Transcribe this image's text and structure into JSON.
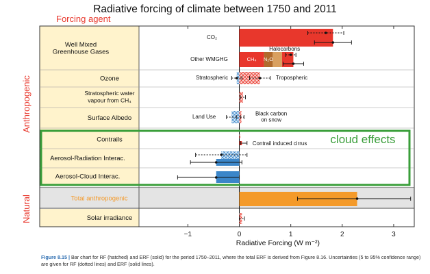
{
  "chart_data": {
    "type": "bar",
    "orientation": "horizontal",
    "title": "Radiative forcing of climate between 1750 and 2011",
    "forcing_agent_header": "Forcing agent",
    "xlabel": "Radiative Forcing (W m⁻²)",
    "xlim": [
      -1.95,
      3.4
    ],
    "xticks": [
      -1,
      0,
      1,
      2,
      3
    ],
    "group_labels": [
      "Anthropogenic",
      "Natural"
    ],
    "highlight_label": "cloud effects",
    "colors": {
      "red": "#e8372c",
      "blue": "#3b86c9",
      "orange": "#f49a2a",
      "brown": "#b06a2c",
      "tan": "#d9a060",
      "frame": "#3a9e3a",
      "header": "#e8372c",
      "band": "#fff3cc"
    },
    "rows": [
      {
        "label": "Well Mixed\nGreenhouse Gases",
        "bars": [
          {
            "sublabel": "CO₂",
            "erf": 1.82,
            "erf_err": [
              1.46,
              2.18
            ],
            "rf": 1.68,
            "rf_err": [
              1.33,
              2.03
            ],
            "color": "red"
          },
          {
            "sublabel": "Other WMGHG",
            "segments": [
              {
                "label": "CH₄",
                "from": 0,
                "to": 0.48,
                "color": "red"
              },
              {
                "label": "N₂O",
                "from": 0.48,
                "to": 0.65,
                "color": "brown"
              },
              {
                "label": "",
                "from": 0.65,
                "to": 0.83,
                "color": "tan"
              },
              {
                "label": "",
                "from": 0.83,
                "to": 1.05,
                "color": "red"
              }
            ],
            "extra_label": "Halocarbons",
            "erf": 1.05,
            "erf_err": [
              0.85,
              1.25
            ],
            "rf": 1.0,
            "rf_err": [
              0.9,
              1.1
            ]
          }
        ]
      },
      {
        "label": "Ozone",
        "bars": [
          {
            "sublabel": "Stratospheric",
            "side": "left",
            "erf": -0.05,
            "erf_err": [
              -0.15,
              0.05
            ],
            "rf": -0.05,
            "rf_err": [
              -0.15,
              0.05
            ],
            "hatch": "blue"
          },
          {
            "sublabel": "Tropospheric",
            "side": "right",
            "rf": 0.4,
            "rf_err": [
              0.2,
              0.6
            ],
            "erf": 0.4,
            "erf_err": [
              0.2,
              0.6
            ],
            "hatch": "red"
          }
        ]
      },
      {
        "label": "Stratospheric water\nvapour from CH₄",
        "bars": [
          {
            "rf": 0.07,
            "rf_err": [
              0.02,
              0.12
            ],
            "hatch": "red"
          }
        ]
      },
      {
        "label": "Surface Albedo",
        "bars": [
          {
            "sublabel": "Land Use",
            "side": "left",
            "rf": -0.15,
            "rf_err": [
              -0.25,
              -0.05
            ],
            "hatch": "blue"
          },
          {
            "sublabel": "Black carbon\non snow",
            "side": "right",
            "rf": 0.04,
            "rf_err": [
              0.02,
              0.09
            ],
            "hatch": "red"
          }
        ]
      },
      {
        "label": "Contrails",
        "bars": [
          {
            "sublabel": "Contrail induced cirrus",
            "side": "right",
            "rf": 0.01,
            "rf_err": [
              0.005,
              0.03
            ],
            "erf": 0.05,
            "erf_err": [
              0.02,
              0.15
            ],
            "color": "red"
          }
        ]
      },
      {
        "label": "Aerosol-Radiation Interac.",
        "bars": [
          {
            "rf": -0.35,
            "rf_err": [
              -0.85,
              0.15
            ],
            "erf": -0.45,
            "erf_err": [
              -0.95,
              0.05
            ],
            "color": "blue"
          }
        ]
      },
      {
        "label": "Aerosol-Cloud Interac.",
        "bars": [
          {
            "erf": -0.45,
            "erf_err": [
              -1.2,
              0.0
            ],
            "color": "blue"
          }
        ]
      },
      {
        "label": "Total anthropogenic",
        "bars": [
          {
            "erf": 2.29,
            "erf_err": [
              1.13,
              3.33
            ],
            "color": "orange"
          }
        ]
      },
      {
        "label": "Solar irradiance",
        "bars": [
          {
            "rf": 0.05,
            "rf_err": [
              0.0,
              0.1
            ],
            "hatch": "red"
          }
        ]
      }
    ]
  },
  "caption": {
    "figure": "Figure 8.15 |",
    "text": " Bar chart for RF (hatched) and ERF (solid) for the period 1750–2011, where the total ERF is derived from Figure 8.16. Uncertainties (5 to 95% confidence range) are given for RF (dotted lines) and ERF (solid lines)."
  }
}
